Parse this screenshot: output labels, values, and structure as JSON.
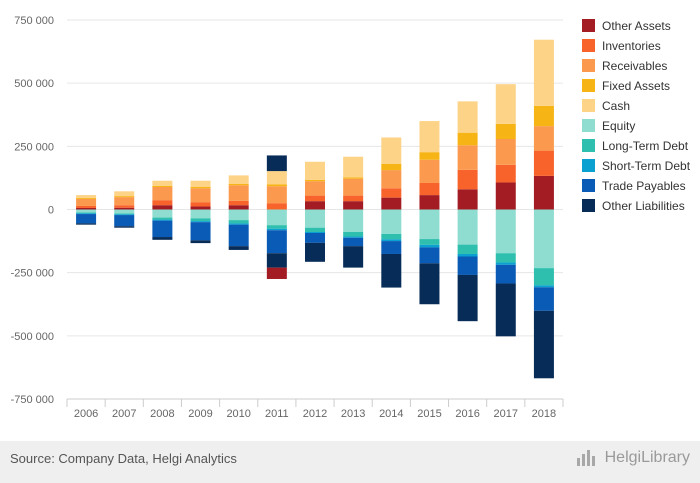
{
  "chart_data": {
    "type": "bar",
    "stacked": true,
    "categories": [
      "2006",
      "2007",
      "2008",
      "2009",
      "2010",
      "2011",
      "2012",
      "2013",
      "2014",
      "2015",
      "2016",
      "2017",
      "2018"
    ],
    "ylim": [
      -750000,
      750000
    ],
    "yticks": [
      750000,
      500000,
      250000,
      0,
      -250000,
      -500000,
      -750000
    ],
    "ytick_labels": [
      "750 000",
      "500 000",
      "250 000",
      "0",
      "-250 000",
      "-500 000",
      "-750 000"
    ],
    "legend_position": "right",
    "grid": true,
    "series": [
      {
        "name": "Other Assets",
        "color": "#a31c24",
        "values": [
          6000,
          7000,
          17000,
          12000,
          17000,
          0,
          33000,
          33000,
          47000,
          57000,
          80000,
          107000,
          133000
        ]
      },
      {
        "name": "Inventories",
        "color": "#f8632b",
        "values": [
          8000,
          10000,
          20000,
          17000,
          17000,
          25000,
          22000,
          22000,
          37000,
          48000,
          77000,
          70000,
          100000
        ]
      },
      {
        "name": "Receivables",
        "color": "#fb9a4e",
        "values": [
          28000,
          32000,
          52000,
          55000,
          62000,
          67000,
          57000,
          67000,
          72000,
          92000,
          97000,
          102000,
          97000
        ]
      },
      {
        "name": "Fixed Assets",
        "color": "#f6b514",
        "values": [
          4000,
          4000,
          5000,
          5000,
          5000,
          7000,
          5000,
          5000,
          25000,
          30000,
          50000,
          60000,
          80000
        ]
      },
      {
        "name": "Cash",
        "color": "#fdd387",
        "values": [
          11000,
          19000,
          20000,
          25000,
          34000,
          53000,
          72000,
          82000,
          104000,
          123000,
          124000,
          157000,
          262000
        ]
      },
      {
        "name": "Equity",
        "color": "#8fddd0",
        "values": [
          -12000,
          -16000,
          -32000,
          -35000,
          -42000,
          -62000,
          -72000,
          -89000,
          -97000,
          -117000,
          -139000,
          -173000,
          -232000
        ]
      },
      {
        "name": "Long-Term Debt",
        "color": "#2fbfae",
        "values": [
          -3000,
          -3000,
          -8000,
          -11000,
          -13000,
          -14000,
          -17000,
          -18000,
          -21000,
          -23000,
          -37000,
          -37000,
          -68000
        ]
      },
      {
        "name": "Short-Term Debt",
        "color": "#0aa0d0",
        "values": [
          -3000,
          -3000,
          -4000,
          -4000,
          -5000,
          -6000,
          -4000,
          -5000,
          -7000,
          -10000,
          -10000,
          -9000,
          -8000
        ]
      },
      {
        "name": "Trade Payables",
        "color": "#0a5bb5",
        "values": [
          -37000,
          -44000,
          -65000,
          -72000,
          -85000,
          -91000,
          -39000,
          -33000,
          -51000,
          -63000,
          -73000,
          -74000,
          -93000
        ]
      },
      {
        "name": "Other Liabilities",
        "color": "#082c58",
        "values": [
          -5000,
          -6000,
          -11000,
          -11000,
          -15000,
          -57000,
          -75000,
          -85000,
          -133000,
          -162000,
          -183000,
          -209000,
          -267000
        ]
      }
    ],
    "extra_positive": [
      {
        "category": "2011",
        "value": 62000,
        "color": "#082c58"
      }
    ],
    "extra_negative": [
      {
        "category": "2011",
        "value": -45000,
        "color": "#a31c24"
      }
    ]
  },
  "footer": {
    "source": "Source: Company Data, Helgi Analytics",
    "brand": "HelgiLibrary"
  }
}
